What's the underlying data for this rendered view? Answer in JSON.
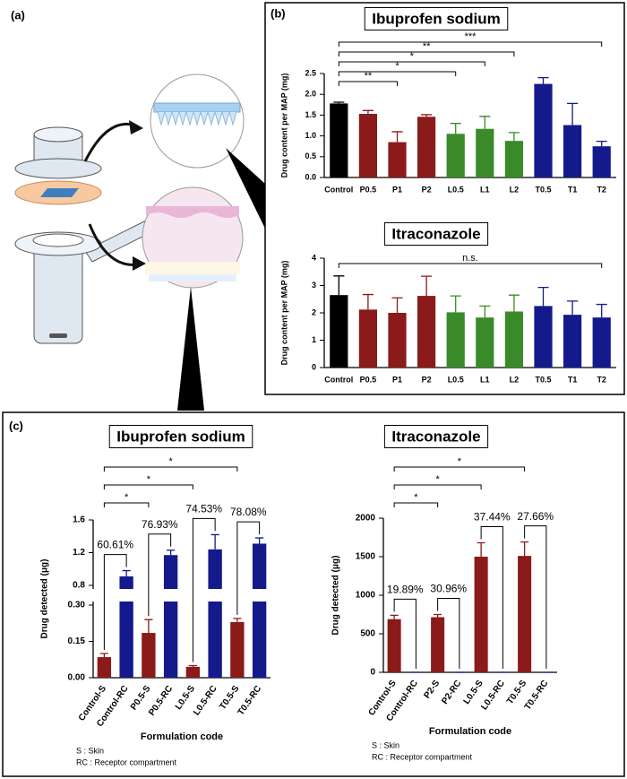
{
  "panel_labels": {
    "a": "(a)",
    "b": "(b)",
    "c": "(c)"
  },
  "chart_data": [
    {
      "type": "bar",
      "title": "Ibuprofen sodium",
      "ylabel": "Drug content per MAP (mg)",
      "categories": [
        "Control",
        "P0.5",
        "P1",
        "P2",
        "L0.5",
        "L1",
        "L2",
        "T0.5",
        "T1",
        "T2"
      ],
      "values": [
        1.78,
        1.53,
        0.85,
        1.46,
        1.05,
        1.17,
        0.88,
        2.25,
        1.26,
        0.75
      ],
      "errors": [
        0.03,
        0.08,
        0.25,
        0.05,
        0.25,
        0.3,
        0.2,
        0.15,
        0.52,
        0.12
      ],
      "colors": [
        "#000000",
        "#8b1a1a",
        "#8b1a1a",
        "#8b1a1a",
        "#3a8a2a",
        "#3a8a2a",
        "#3a8a2a",
        "#141a8c",
        "#141a8c",
        "#141a8c"
      ],
      "ylim": [
        0,
        2.5
      ],
      "yticks": [
        {
          "value": 0,
          "label": "0.0"
        },
        0.5,
        {
          "value": 1,
          "label": "1.0"
        },
        1.5,
        {
          "value": 2,
          "label": "2.0"
        },
        2.5
      ],
      "significance": [
        {
          "from": "Control",
          "to": "T2",
          "label": "***"
        },
        {
          "from": "Control",
          "to": "L2",
          "label": "**"
        },
        {
          "from": "Control",
          "to": "L1",
          "label": "*"
        },
        {
          "from": "Control",
          "to": "L0.5",
          "label": "*"
        },
        {
          "from": "Control",
          "to": "P1",
          "label": "**"
        }
      ]
    },
    {
      "type": "bar",
      "title": "Itraconazole",
      "ylabel": "Drug content per MAP (mg)",
      "categories": [
        "Control",
        "P0.5",
        "P1",
        "P2",
        "L0.5",
        "L1",
        "L2",
        "T0.5",
        "T1",
        "T2"
      ],
      "values": [
        2.65,
        2.12,
        2.0,
        2.62,
        2.02,
        1.83,
        2.05,
        2.25,
        1.93,
        1.83
      ],
      "errors": [
        0.7,
        0.55,
        0.55,
        0.72,
        0.6,
        0.42,
        0.6,
        0.68,
        0.5,
        0.48
      ],
      "colors": [
        "#000000",
        "#8b1a1a",
        "#8b1a1a",
        "#8b1a1a",
        "#3a8a2a",
        "#3a8a2a",
        "#3a8a2a",
        "#141a8c",
        "#141a8c",
        "#141a8c"
      ],
      "ylim": [
        0,
        4
      ],
      "yticks": [
        0,
        1,
        2,
        3,
        4
      ],
      "significance": [
        {
          "from": "Control",
          "to": "T2",
          "label": "n.s."
        }
      ]
    },
    {
      "type": "bar",
      "title": "Ibuprofen sodium",
      "ylabel": "Drug detected (μg)",
      "xlabel": "Formulation code",
      "categories": [
        "Control-S",
        "Control-RC",
        "P0.5-S",
        "P0.5-RC",
        "L0.5-S",
        "L0.5-RC",
        "T0.5-S",
        "T0.5-RC"
      ],
      "values": [
        0.085,
        0.91,
        0.185,
        1.17,
        0.045,
        1.24,
        0.23,
        1.31
      ],
      "errors": [
        0.015,
        0.07,
        0.055,
        0.06,
        0.005,
        0.18,
        0.015,
        0.07
      ],
      "colors": [
        "#8b1a1a",
        "#141a8c",
        "#8b1a1a",
        "#141a8c",
        "#8b1a1a",
        "#141a8c",
        "#8b1a1a",
        "#141a8c"
      ],
      "ylim": [
        0,
        1.6
      ],
      "y_break": [
        0.3,
        0.8
      ],
      "yticks": [
        {
          "value": 0,
          "label": "0.00"
        },
        0.15,
        {
          "value": 0.3,
          "label": "0.30"
        },
        0.8,
        1.2,
        1.6
      ],
      "significance": [
        {
          "from": "Control-S",
          "to": "T0.5-S",
          "label": "*"
        },
        {
          "from": "Control-S",
          "to": "L0.5-S",
          "label": "*"
        },
        {
          "from": "Control-S",
          "to": "P0.5-S",
          "label": "*"
        }
      ],
      "pair_labels": [
        {
          "from": "Control-S",
          "to": "Control-RC",
          "label": "60.61%"
        },
        {
          "from": "P0.5-S",
          "to": "P0.5-RC",
          "label": "76.93%"
        },
        {
          "from": "L0.5-S",
          "to": "L0.5-RC",
          "label": "74.53%"
        },
        {
          "from": "T0.5-S",
          "to": "T0.5-RC",
          "label": "78.08%"
        }
      ],
      "notes": [
        "S : Skin",
        "RC : Receptor compartment"
      ]
    },
    {
      "type": "bar",
      "title": "Itraconazole",
      "ylabel": "Drug detected (μg)",
      "xlabel": "Formulation code",
      "categories": [
        "Control-S",
        "Control-RC",
        "P2-S",
        "P2-RC",
        "L0.5-S",
        "L0.5-RC",
        "T0.5-S",
        "T0.5-RC"
      ],
      "values": [
        690,
        0,
        715,
        0,
        1500,
        0,
        1510,
        0
      ],
      "errors": [
        50,
        0,
        35,
        0,
        180,
        0,
        180,
        0
      ],
      "colors": [
        "#8b1a1a",
        "#141a8c",
        "#8b1a1a",
        "#141a8c",
        "#8b1a1a",
        "#141a8c",
        "#8b1a1a",
        "#141a8c"
      ],
      "ylim": [
        0,
        2000
      ],
      "yticks": [
        0,
        500,
        1000,
        1500,
        2000
      ],
      "significance": [
        {
          "from": "Control-S",
          "to": "T0.5-S",
          "label": "*"
        },
        {
          "from": "Control-S",
          "to": "L0.5-S",
          "label": "*"
        },
        {
          "from": "Control-S",
          "to": "P2-S",
          "label": "*"
        }
      ],
      "pair_labels": [
        {
          "from": "Control-S",
          "to": "Control-RC",
          "label": "19.89%"
        },
        {
          "from": "P2-S",
          "to": "P2-RC",
          "label": "30.96%"
        },
        {
          "from": "L0.5-S",
          "to": "L0.5-RC",
          "label": "37.44%"
        },
        {
          "from": "T0.5-S",
          "to": "T0.5-RC",
          "label": "27.66%"
        }
      ],
      "notes": [
        "S : Skin",
        "RC : Receptor compartment"
      ]
    }
  ]
}
